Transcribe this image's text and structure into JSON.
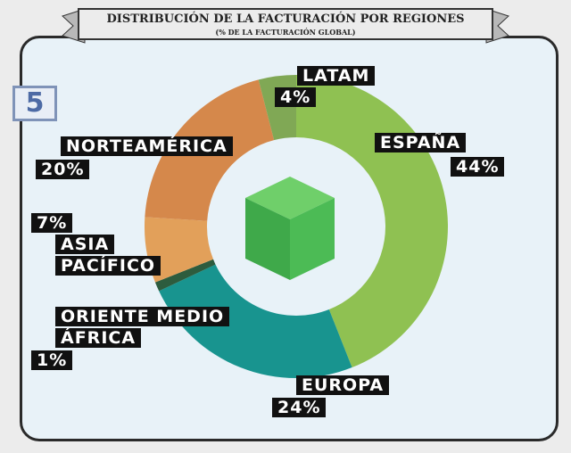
{
  "badge": "5",
  "chart_data": {
    "type": "donut",
    "title": "DISTRIBUCIÓN DE LA FACTURACIÓN POR REGIONES",
    "subtitle": "(% DE LA FACTURACIÓN GLOBAL)",
    "categories": [
      "ESPAÑA",
      "EUROPA",
      "ORIENTE MEDIO ÁFRICA",
      "ASIA PACÍFICO",
      "NORTEAMÉRICA",
      "LATAM"
    ],
    "values": [
      44,
      24,
      1,
      7,
      20,
      4
    ],
    "value_labels": [
      "44%",
      "24%",
      "1%",
      "7%",
      "20%",
      "4%"
    ],
    "colors": [
      "#8fc152",
      "#18948f",
      "#2d5c3e",
      "#e2a05a",
      "#d5884b",
      "#80a855"
    ]
  }
}
